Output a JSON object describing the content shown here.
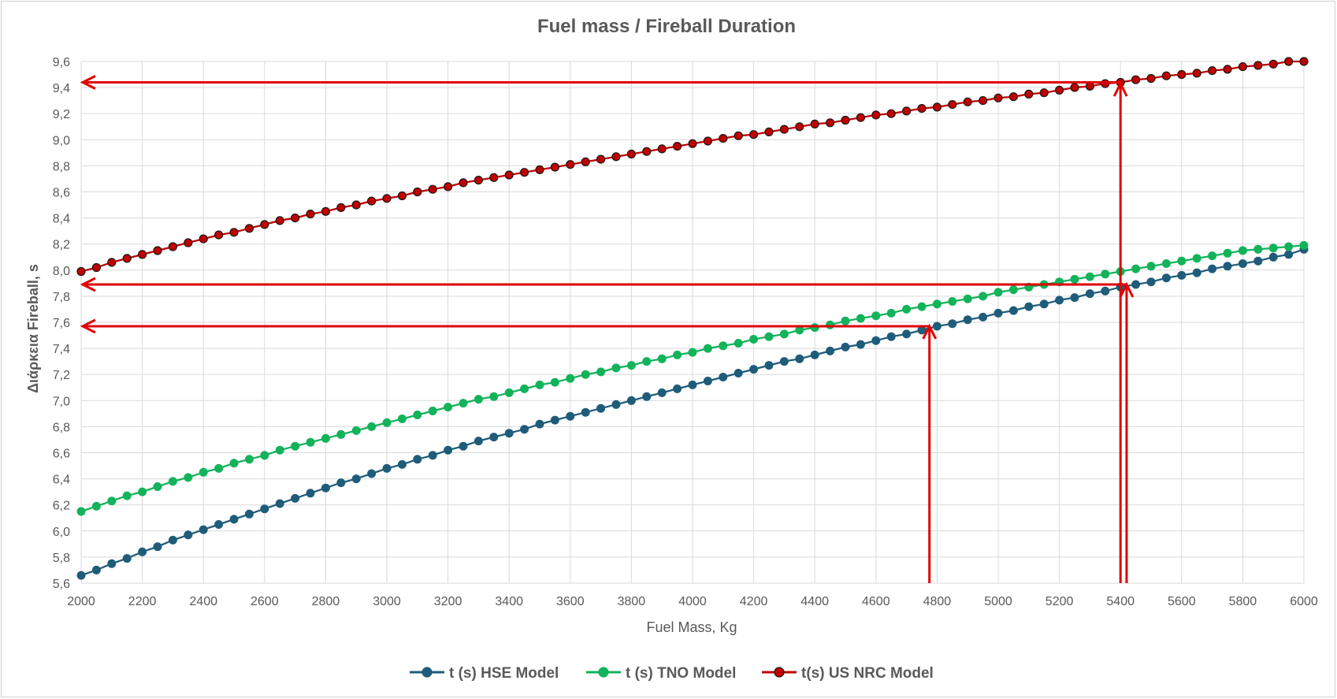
{
  "chart_data": {
    "type": "line",
    "title": "Fuel mass / Fireball Duration",
    "xlabel": "Fuel Mass, Kg",
    "ylabel": "Διάρκεια Fireball, s",
    "xlim": [
      2000,
      6000
    ],
    "ylim": [
      5.6,
      9.6
    ],
    "x_ticks": [
      "2000",
      "2200",
      "2400",
      "2600",
      "2800",
      "3000",
      "3200",
      "3400",
      "3600",
      "3800",
      "4000",
      "4200",
      "4400",
      "4600",
      "4800",
      "5000",
      "5200",
      "5400",
      "5600",
      "5800",
      "6000"
    ],
    "y_ticks": [
      "5,6",
      "5,8",
      "6,0",
      "6,2",
      "6,4",
      "6,6",
      "6,8",
      "7,0",
      "7,2",
      "7,4",
      "7,6",
      "7,8",
      "8,0",
      "8,2",
      "8,4",
      "8,6",
      "8,8",
      "9,0",
      "9,2",
      "9,4",
      "9,6"
    ],
    "grid": true,
    "legend_position": "bottom",
    "x_start": 2000,
    "x_step": 50,
    "series": [
      {
        "name": "t (s) HSE Model",
        "color": "#1f5c7a",
        "values": [
          5.66,
          5.7,
          5.75,
          5.79,
          5.84,
          5.88,
          5.93,
          5.97,
          6.01,
          6.05,
          6.09,
          6.13,
          6.17,
          6.21,
          6.25,
          6.29,
          6.33,
          6.37,
          6.4,
          6.44,
          6.48,
          6.51,
          6.55,
          6.58,
          6.62,
          6.65,
          6.69,
          6.72,
          6.75,
          6.78,
          6.82,
          6.85,
          6.88,
          6.91,
          6.94,
          6.97,
          7.0,
          7.03,
          7.06,
          7.09,
          7.12,
          7.15,
          7.18,
          7.21,
          7.24,
          7.27,
          7.3,
          7.32,
          7.35,
          7.38,
          7.41,
          7.43,
          7.46,
          7.49,
          7.51,
          7.54,
          7.57,
          7.59,
          7.62,
          7.64,
          7.67,
          7.69,
          7.72,
          7.74,
          7.77,
          7.79,
          7.82,
          7.84,
          7.87,
          7.89,
          7.91,
          7.94,
          7.96,
          7.98,
          8.01,
          8.03,
          8.05,
          8.07,
          8.1,
          8.12,
          8.16
        ]
      },
      {
        "name": "t (s) TNO Model",
        "color": "#12b35a",
        "values": [
          6.15,
          6.19,
          6.23,
          6.27,
          6.3,
          6.34,
          6.38,
          6.41,
          6.45,
          6.48,
          6.52,
          6.55,
          6.58,
          6.62,
          6.65,
          6.68,
          6.71,
          6.74,
          6.77,
          6.8,
          6.83,
          6.86,
          6.89,
          6.92,
          6.95,
          6.98,
          7.01,
          7.03,
          7.06,
          7.09,
          7.12,
          7.14,
          7.17,
          7.2,
          7.22,
          7.25,
          7.27,
          7.3,
          7.32,
          7.35,
          7.37,
          7.4,
          7.42,
          7.44,
          7.47,
          7.49,
          7.51,
          7.54,
          7.56,
          7.58,
          7.61,
          7.63,
          7.65,
          7.67,
          7.7,
          7.72,
          7.74,
          7.76,
          7.78,
          7.8,
          7.83,
          7.85,
          7.87,
          7.89,
          7.91,
          7.93,
          7.95,
          7.97,
          7.99,
          8.01,
          8.03,
          8.05,
          8.07,
          8.09,
          8.11,
          8.13,
          8.15,
          8.16,
          8.17,
          8.18,
          8.19
        ]
      },
      {
        "name": "t(s) US NRC Model",
        "color": "#c00000",
        "values": [
          7.99,
          8.02,
          8.06,
          8.09,
          8.12,
          8.15,
          8.18,
          8.21,
          8.24,
          8.27,
          8.29,
          8.32,
          8.35,
          8.38,
          8.4,
          8.43,
          8.45,
          8.48,
          8.5,
          8.53,
          8.55,
          8.57,
          8.6,
          8.62,
          8.64,
          8.67,
          8.69,
          8.71,
          8.73,
          8.75,
          8.77,
          8.79,
          8.81,
          8.83,
          8.85,
          8.87,
          8.89,
          8.91,
          8.93,
          8.95,
          8.97,
          8.99,
          9.01,
          9.03,
          9.04,
          9.06,
          9.08,
          9.1,
          9.12,
          9.13,
          9.15,
          9.17,
          9.19,
          9.2,
          9.22,
          9.24,
          9.25,
          9.27,
          9.29,
          9.3,
          9.32,
          9.33,
          9.35,
          9.36,
          9.38,
          9.4,
          9.41,
          9.43,
          9.44,
          9.46,
          9.47,
          9.49,
          9.5,
          9.51,
          9.53,
          9.54,
          9.56,
          9.57,
          9.58,
          9.6,
          9.6
        ]
      }
    ],
    "annotations": [
      {
        "type": "vertical-arrow",
        "x": 4775,
        "from_y": 5.6,
        "to_y": 7.57
      },
      {
        "type": "horizontal-arrow",
        "y": 7.57,
        "from_x": 4775,
        "to_x": 2000
      },
      {
        "type": "vertical-arrow",
        "x": 5400,
        "from_y": 5.6,
        "to_y": 9.43
      },
      {
        "type": "horizontal-arrow",
        "y": 9.44,
        "from_x": 5400,
        "to_x": 2000
      },
      {
        "type": "vertical-arrow",
        "x": 5420,
        "from_y": 5.6,
        "to_y": 7.89
      },
      {
        "type": "horizontal-arrow",
        "y": 7.89,
        "from_x": 5420,
        "to_x": 2000
      }
    ],
    "annotation_color": "#e00000"
  }
}
